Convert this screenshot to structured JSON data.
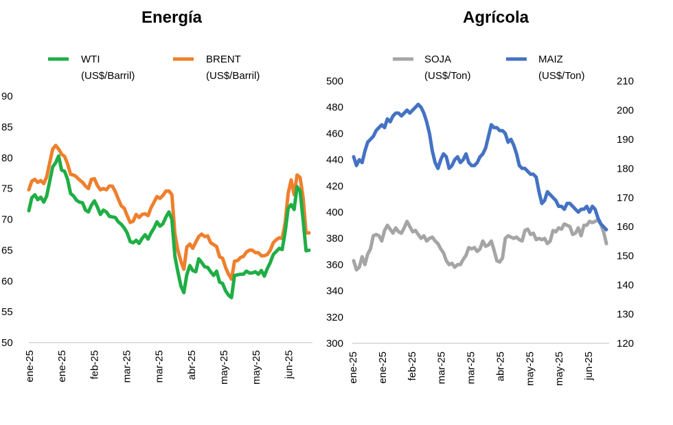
{
  "chart_data": [
    {
      "type": "line",
      "title": "Energía",
      "xlabel": "",
      "ylabel": "",
      "ylim": [
        50,
        90
      ],
      "y_ticks": [
        "50",
        "55",
        "60",
        "65",
        "70",
        "75",
        "80",
        "85",
        "90"
      ],
      "x_ticks": [
        "ene-25",
        "ene-25",
        "feb-25",
        "mar-25",
        "mar-25",
        "abr-25",
        "may-25",
        "may-25",
        "jun-25"
      ],
      "grid": false,
      "legend_position": "top",
      "series": [
        {
          "name": "WTI",
          "unit": "(US$/Barril)",
          "color": "#1fae45",
          "values": [
            71.4,
            73.5,
            74.0,
            73.2,
            73.6,
            72.8,
            73.8,
            76.2,
            78.5,
            79.2,
            80.3,
            78.0,
            77.8,
            76.5,
            74.2,
            73.8,
            73.1,
            72.8,
            72.7,
            71.5,
            71.2,
            72.3,
            73.0,
            72.0,
            70.8,
            71.5,
            71.2,
            70.5,
            70.4,
            70.3,
            69.6,
            69.2,
            68.6,
            67.8,
            66.4,
            66.2,
            66.6,
            66.1,
            66.9,
            67.5,
            66.8,
            67.8,
            68.6,
            69.6,
            68.9,
            69.3,
            70.4,
            71.2,
            70.0,
            64.0,
            61.5,
            59.2,
            58.1,
            61.0,
            62.5,
            61.7,
            61.5,
            63.6,
            63.0,
            62.3,
            62.2,
            61.5,
            60.9,
            61.6,
            59.8,
            59.6,
            58.4,
            57.7,
            57.3,
            60.9,
            61.0,
            61.1,
            61.1,
            61.6,
            61.3,
            61.3,
            61.5,
            61.1,
            61.7,
            60.8,
            62.0,
            63.0,
            64.3,
            64.8,
            65.3,
            65.1,
            68.0,
            71.8,
            72.4,
            71.6,
            75.3,
            74.6,
            70.0,
            64.9,
            65.0
          ]
        },
        {
          "name": "BRENT",
          "unit": "(US$/Barril)",
          "color": "#ef7f2d",
          "values": [
            74.8,
            76.2,
            76.5,
            76.0,
            76.3,
            75.8,
            76.9,
            79.2,
            81.4,
            82.0,
            81.4,
            80.6,
            80.2,
            79.0,
            77.3,
            77.2,
            76.9,
            76.4,
            76.0,
            75.4,
            75.0,
            76.5,
            76.6,
            75.5,
            74.8,
            75.0,
            74.8,
            75.4,
            75.4,
            74.5,
            73.3,
            72.2,
            71.8,
            70.6,
            69.5,
            69.7,
            70.8,
            70.3,
            70.8,
            70.9,
            70.6,
            71.9,
            72.8,
            73.7,
            73.4,
            73.9,
            74.6,
            74.6,
            74.0,
            67.6,
            65.0,
            63.2,
            61.9,
            65.5,
            66.0,
            65.3,
            66.3,
            67.2,
            67.6,
            67.2,
            67.3,
            66.2,
            65.9,
            65.6,
            63.9,
            63.7,
            62.2,
            61.1,
            60.3,
            63.2,
            63.3,
            63.8,
            64.0,
            64.7,
            65.0,
            65.0,
            64.6,
            64.6,
            64.1,
            64.1,
            64.3,
            65.0,
            66.2,
            66.7,
            67.0,
            66.9,
            69.5,
            74.2,
            76.4,
            74.0,
            77.2,
            76.8,
            73.6,
            67.8,
            67.8
          ]
        }
      ]
    },
    {
      "type": "line",
      "title": "Agrícola",
      "xlabel": "",
      "ylabel": "",
      "ylim": [
        300,
        500
      ],
      "y2lim": [
        120,
        210
      ],
      "y_ticks": [
        "300",
        "320",
        "340",
        "360",
        "380",
        "400",
        "420",
        "440",
        "460",
        "480",
        "500"
      ],
      "y2_ticks": [
        "120",
        "130",
        "140",
        "150",
        "160",
        "170",
        "180",
        "190",
        "200",
        "210"
      ],
      "x_ticks": [
        "ene-25",
        "ene-25",
        "feb-25",
        "mar-25",
        "mar-25",
        "abr-25",
        "may-25",
        "may-25",
        "jun-25"
      ],
      "grid": false,
      "legend_position": "top",
      "series": [
        {
          "name": "SOJA",
          "unit": "(US$/Ton)",
          "axis": "left",
          "color": "#a5a5a5",
          "values": [
            363,
            356,
            358,
            366,
            360,
            368,
            372,
            382,
            383,
            382,
            378,
            386,
            390,
            387,
            384,
            388,
            385,
            384,
            388,
            393,
            389,
            385,
            386,
            383,
            380,
            382,
            378,
            380,
            381,
            378,
            376,
            372,
            369,
            363,
            360,
            361,
            358,
            360,
            360,
            364,
            367,
            373,
            372,
            373,
            370,
            372,
            378,
            374,
            375,
            378,
            371,
            363,
            362,
            365,
            380,
            382,
            381,
            380,
            381,
            379,
            378,
            386,
            387,
            383,
            384,
            379,
            380,
            379,
            380,
            376,
            378,
            386,
            385,
            388,
            387,
            391,
            390,
            389,
            383,
            384,
            388,
            382,
            390,
            390,
            393,
            392,
            393,
            394,
            391,
            385,
            376
          ]
        },
        {
          "name": "MAIZ",
          "unit": "(US$/Ton)",
          "axis": "right",
          "color": "#4472c4",
          "values": [
            184,
            181,
            183,
            182,
            186,
            189,
            190,
            191,
            193,
            194,
            195,
            194,
            197,
            196,
            198,
            199,
            199,
            198,
            199,
            200,
            199,
            200,
            201,
            202,
            201,
            199,
            196,
            192,
            186,
            182,
            180,
            183,
            185,
            184,
            180,
            181,
            183,
            184,
            182,
            183,
            185,
            182,
            181,
            181,
            182,
            184,
            185,
            187,
            191,
            195,
            194,
            194,
            193,
            193,
            192,
            189,
            190,
            188,
            185,
            181,
            180,
            180,
            179,
            178,
            178,
            177,
            172,
            168,
            169,
            172,
            171,
            170,
            169,
            167,
            167,
            166,
            168,
            168,
            167,
            166,
            165,
            166,
            166,
            167,
            165,
            167,
            166,
            163,
            161,
            160,
            159
          ]
        }
      ]
    }
  ]
}
